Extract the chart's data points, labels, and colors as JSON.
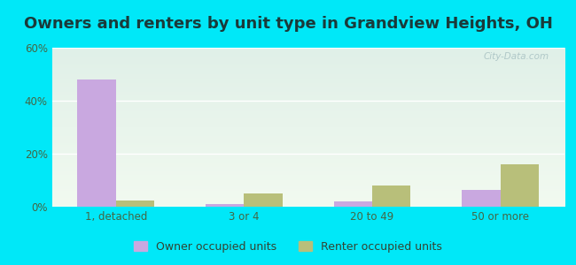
{
  "title": "Owners and renters by unit type in Grandview Heights, OH",
  "categories": [
    "1, detached",
    "3 or 4",
    "20 to 49",
    "50 or more"
  ],
  "owner_values": [
    48.0,
    1.0,
    2.0,
    6.5
  ],
  "renter_values": [
    2.5,
    5.0,
    8.0,
    16.0
  ],
  "owner_color": "#c9a8e0",
  "renter_color": "#b8bf7a",
  "ylim": [
    0,
    60
  ],
  "yticks": [
    0,
    20,
    40,
    60
  ],
  "ytick_labels": [
    "0%",
    "20%",
    "40%",
    "60%"
  ],
  "outer_bg": "#00e8f8",
  "bar_width": 0.3,
  "legend_owner": "Owner occupied units",
  "legend_renter": "Renter occupied units",
  "title_fontsize": 13,
  "watermark": "City-Data.com",
  "bg_top": "#e0f0e8",
  "bg_bottom": "#f2faf0",
  "grid_color": "#d8eed8"
}
